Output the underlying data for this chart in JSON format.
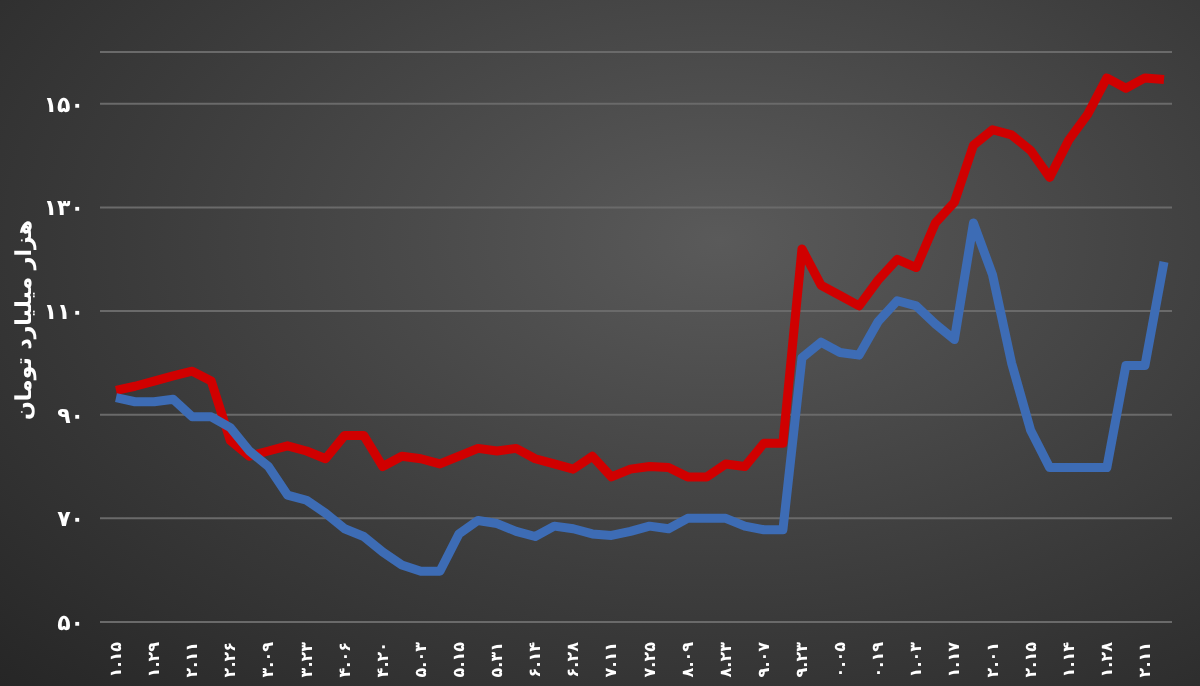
{
  "chart_data": {
    "type": "line",
    "ylabel": "هزار میلیارد تومان",
    "categories": [
      "۱.۱۵",
      null,
      "۱.۲۹",
      null,
      "۲.۱۱",
      null,
      "۲.۲۶",
      null,
      "۳.۰۹",
      null,
      "۳.۲۳",
      null,
      "۴.۰۶",
      null,
      "۴.۲۰",
      null,
      "۵.۰۳",
      null,
      "۵.۱۵",
      null,
      "۵.۳۱",
      null,
      "۶.۱۴",
      null,
      "۶.۲۸",
      null,
      "۷.۱۱",
      null,
      "۷.۲۵",
      null,
      "۸.۰۹",
      null,
      "۸.۲۳",
      null,
      "۹.۰۷",
      null,
      "۹.۲۳",
      null,
      "۰.۰۵",
      null,
      "۰.۱۹",
      null,
      "۱.۰۳",
      null,
      "۱.۱۷",
      null,
      "۲.۰۱",
      null,
      "۲.۱۵",
      null,
      "۱.۱۴",
      null,
      "۱.۲۸",
      null,
      "۲.۱۱",
      null
    ],
    "series": [
      {
        "color": "#d00000",
        "values": [
          94.7,
          95.5,
          96.5,
          97.5,
          98.4,
          96.5,
          85,
          82,
          83,
          84,
          83,
          81.5,
          86,
          86,
          80,
          82,
          81.5,
          80.5,
          82,
          83.5,
          83,
          83.5,
          81.5,
          80.5,
          79.5,
          82,
          78,
          79.5,
          80,
          79.8,
          78,
          78,
          80.5,
          80,
          84.5,
          84.5,
          122,
          115,
          113,
          111,
          116,
          120,
          118.4,
          127,
          131,
          142,
          145,
          144,
          141,
          135.8,
          143,
          148,
          155,
          153,
          155,
          154.7
        ]
      },
      {
        "color": "#3d6cb5",
        "values": [
          93.3,
          92.5,
          92.5,
          93,
          89.6,
          89.6,
          87.5,
          83,
          80,
          74.5,
          73.5,
          71,
          68,
          66.5,
          63.5,
          61,
          59.8,
          59.8,
          67,
          69.6,
          69,
          67.5,
          66.5,
          68.5,
          68,
          67,
          66.7,
          67.5,
          68.5,
          68,
          70,
          70,
          70,
          68.5,
          67.8,
          67.8,
          101,
          104,
          102,
          101.5,
          108,
          112,
          111,
          107.5,
          104.5,
          127,
          117,
          100,
          87,
          79.8,
          79.8,
          79.8,
          79.8,
          99.5,
          99.5,
          119.5
        ]
      }
    ],
    "ylim": [
      50,
      160
    ],
    "yticks": [
      {
        "value": 50,
        "label": "۵۰"
      },
      {
        "value": 70,
        "label": "۷۰"
      },
      {
        "value": 90,
        "label": "۹۰"
      },
      {
        "value": 110,
        "label": "۱۱۰"
      },
      {
        "value": 130,
        "label": "۱۳۰"
      },
      {
        "value": 150,
        "label": "۱۵۰"
      }
    ],
    "grid": "y",
    "legend": false,
    "marker": "none",
    "line_style": "solid"
  }
}
